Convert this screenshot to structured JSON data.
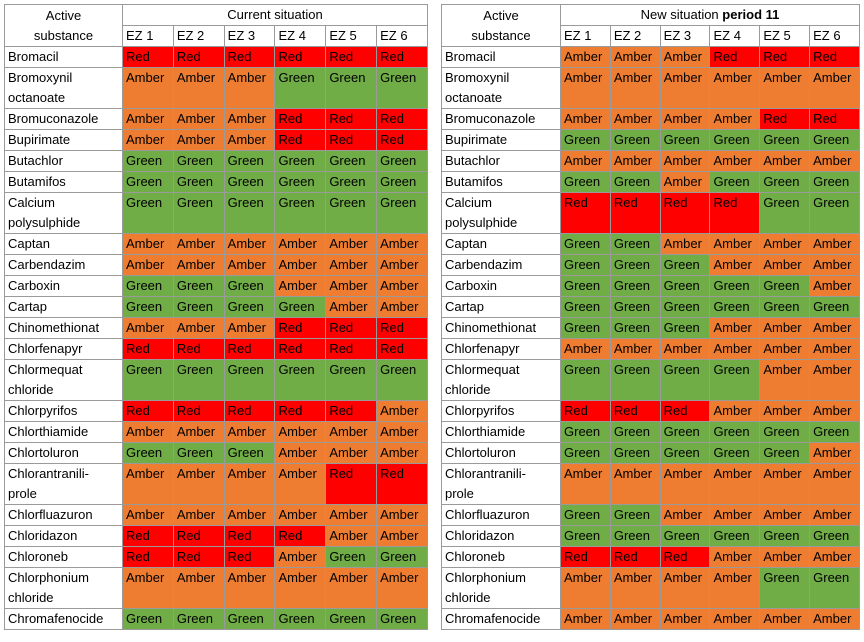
{
  "header": {
    "col_label_line1": "Active",
    "col_label_line2": "substance",
    "current_title": "Current situation",
    "new_title_prefix": "New situation ",
    "new_title_bold": "period 11",
    "zones": [
      "EZ 1",
      "EZ 2",
      "EZ 3",
      "EZ 4",
      "EZ 5",
      "EZ 6"
    ]
  },
  "colors": {
    "Red": "#ff0000",
    "Amber": "#ee7d31",
    "Green": "#70ad47"
  },
  "current": [
    {
      "lines": [
        "Bromacil"
      ],
      "ez": [
        "Red",
        "Red",
        "Red",
        "Red",
        "Red",
        "Red"
      ]
    },
    {
      "lines": [
        "Bromoxynil",
        "octanoate"
      ],
      "ez": [
        "Amber",
        "Amber",
        "Amber",
        "Green",
        "Green",
        "Green"
      ]
    },
    {
      "lines": [
        "Bromuconazole"
      ],
      "ez": [
        "Amber",
        "Amber",
        "Amber",
        "Red",
        "Red",
        "Red"
      ]
    },
    {
      "lines": [
        "Bupirimate"
      ],
      "ez": [
        "Amber",
        "Amber",
        "Amber",
        "Red",
        "Red",
        "Red"
      ]
    },
    {
      "lines": [
        "Butachlor"
      ],
      "ez": [
        "Green",
        "Green",
        "Green",
        "Green",
        "Green",
        "Green"
      ]
    },
    {
      "lines": [
        "Butamifos"
      ],
      "ez": [
        "Green",
        "Green",
        "Green",
        "Green",
        "Green",
        "Green"
      ]
    },
    {
      "lines": [
        "Calcium",
        "polysulphide"
      ],
      "ez": [
        "Green",
        "Green",
        "Green",
        "Green",
        "Green",
        "Green"
      ]
    },
    {
      "lines": [
        "Captan"
      ],
      "ez": [
        "Amber",
        "Amber",
        "Amber",
        "Amber",
        "Amber",
        "Amber"
      ]
    },
    {
      "lines": [
        "Carbendazim"
      ],
      "ez": [
        "Amber",
        "Amber",
        "Amber",
        "Amber",
        "Amber",
        "Amber"
      ]
    },
    {
      "lines": [
        "Carboxin"
      ],
      "ez": [
        "Green",
        "Green",
        "Green",
        "Amber",
        "Amber",
        "Amber"
      ]
    },
    {
      "lines": [
        "Cartap"
      ],
      "ez": [
        "Green",
        "Green",
        "Green",
        "Green",
        "Amber",
        "Amber"
      ]
    },
    {
      "lines": [
        "Chinomethionat"
      ],
      "ez": [
        "Amber",
        "Amber",
        "Amber",
        "Red",
        "Red",
        "Red"
      ]
    },
    {
      "lines": [
        "Chlorfenapyr"
      ],
      "ez": [
        "Red",
        "Red",
        "Red",
        "Red",
        "Red",
        "Red"
      ]
    },
    {
      "lines": [
        "Chlormequat",
        "chloride"
      ],
      "ez": [
        "Green",
        "Green",
        "Green",
        "Green",
        "Green",
        "Green"
      ]
    },
    {
      "lines": [
        "Chlorpyrifos"
      ],
      "ez": [
        "Red",
        "Red",
        "Red",
        "Red",
        "Red",
        "Amber"
      ]
    },
    {
      "lines": [
        "Chlorthiamide"
      ],
      "ez": [
        "Amber",
        "Amber",
        "Amber",
        "Amber",
        "Amber",
        "Amber"
      ]
    },
    {
      "lines": [
        "Chlortoluron"
      ],
      "ez": [
        "Green",
        "Green",
        "Green",
        "Amber",
        "Amber",
        "Amber"
      ]
    },
    {
      "lines": [
        "Chlorantranili-",
        "prole"
      ],
      "ez": [
        "Amber",
        "Amber",
        "Amber",
        "Amber",
        "Red",
        "Red"
      ]
    },
    {
      "lines": [
        "Chlorfluazuron"
      ],
      "ez": [
        "Amber",
        "Amber",
        "Amber",
        "Amber",
        "Amber",
        "Amber"
      ]
    },
    {
      "lines": [
        "Chloridazon"
      ],
      "ez": [
        "Red",
        "Red",
        "Red",
        "Red",
        "Amber",
        "Amber"
      ]
    },
    {
      "lines": [
        "Chloroneb"
      ],
      "ez": [
        "Red",
        "Red",
        "Red",
        "Amber",
        "Green",
        "Green"
      ]
    },
    {
      "lines": [
        "Chlorphonium",
        "chloride"
      ],
      "ez": [
        "Amber",
        "Amber",
        "Amber",
        "Amber",
        "Amber",
        "Amber"
      ]
    },
    {
      "lines": [
        "Chromafenocide"
      ],
      "ez": [
        "Green",
        "Green",
        "Green",
        "Green",
        "Green",
        "Green"
      ]
    }
  ],
  "new": [
    {
      "lines": [
        "Bromacil"
      ],
      "ez": [
        "Amber",
        "Amber",
        "Amber",
        "Red",
        "Red",
        "Red"
      ]
    },
    {
      "lines": [
        "Bromoxynil",
        "octanoate"
      ],
      "ez": [
        "Amber",
        "Amber",
        "Amber",
        "Amber",
        "Amber",
        "Amber"
      ]
    },
    {
      "lines": [
        "Bromuconazole"
      ],
      "ez": [
        "Amber",
        "Amber",
        "Amber",
        "Amber",
        "Red",
        "Red"
      ]
    },
    {
      "lines": [
        "Bupirimate"
      ],
      "ez": [
        "Green",
        "Green",
        "Green",
        "Green",
        "Green",
        "Green"
      ]
    },
    {
      "lines": [
        "Butachlor"
      ],
      "ez": [
        "Amber",
        "Amber",
        "Amber",
        "Amber",
        "Amber",
        "Amber"
      ]
    },
    {
      "lines": [
        "Butamifos"
      ],
      "ez": [
        "Green",
        "Green",
        "Amber",
        "Green",
        "Green",
        "Green"
      ]
    },
    {
      "lines": [
        "Calcium",
        "polysulphide"
      ],
      "ez": [
        "Red",
        "Red",
        "Red",
        "Red",
        "Green",
        "Green"
      ]
    },
    {
      "lines": [
        "Captan"
      ],
      "ez": [
        "Green",
        "Green",
        "Amber",
        "Amber",
        "Amber",
        "Amber"
      ]
    },
    {
      "lines": [
        "Carbendazim"
      ],
      "ez": [
        "Green",
        "Green",
        "Green",
        "Amber",
        "Amber",
        "Amber"
      ]
    },
    {
      "lines": [
        "Carboxin"
      ],
      "ez": [
        "Green",
        "Green",
        "Green",
        "Green",
        "Green",
        "Amber"
      ]
    },
    {
      "lines": [
        "Cartap"
      ],
      "ez": [
        "Green",
        "Green",
        "Green",
        "Green",
        "Green",
        "Green"
      ]
    },
    {
      "lines": [
        "Chinomethionat"
      ],
      "ez": [
        "Green",
        "Green",
        "Green",
        "Amber",
        "Amber",
        "Amber"
      ]
    },
    {
      "lines": [
        "Chlorfenapyr"
      ],
      "ez": [
        "Amber",
        "Amber",
        "Amber",
        "Amber",
        "Amber",
        "Amber"
      ]
    },
    {
      "lines": [
        "Chlormequat",
        "chloride"
      ],
      "ez": [
        "Green",
        "Green",
        "Green",
        "Green",
        "Amber",
        "Amber"
      ]
    },
    {
      "lines": [
        "Chlorpyrifos"
      ],
      "ez": [
        "Red",
        "Red",
        "Red",
        "Amber",
        "Amber",
        "Amber"
      ]
    },
    {
      "lines": [
        "Chlorthiamide"
      ],
      "ez": [
        "Green",
        "Green",
        "Green",
        "Green",
        "Green",
        "Green"
      ]
    },
    {
      "lines": [
        "Chlortoluron"
      ],
      "ez": [
        "Green",
        "Green",
        "Green",
        "Green",
        "Green",
        "Amber"
      ]
    },
    {
      "lines": [
        "Chlorantranili-",
        "prole"
      ],
      "ez": [
        "Amber",
        "Amber",
        "Amber",
        "Amber",
        "Amber",
        "Amber"
      ]
    },
    {
      "lines": [
        "Chlorfluazuron"
      ],
      "ez": [
        "Green",
        "Green",
        "Amber",
        "Amber",
        "Amber",
        "Amber"
      ]
    },
    {
      "lines": [
        "Chloridazon"
      ],
      "ez": [
        "Green",
        "Green",
        "Green",
        "Green",
        "Green",
        "Green"
      ]
    },
    {
      "lines": [
        "Chloroneb"
      ],
      "ez": [
        "Red",
        "Red",
        "Red",
        "Amber",
        "Amber",
        "Amber"
      ]
    },
    {
      "lines": [
        "Chlorphonium",
        "chloride"
      ],
      "ez": [
        "Amber",
        "Amber",
        "Amber",
        "Amber",
        "Green",
        "Green"
      ]
    },
    {
      "lines": [
        "Chromafenocide"
      ],
      "ez": [
        "Amber",
        "Amber",
        "Amber",
        "Amber",
        "Amber",
        "Amber"
      ]
    }
  ]
}
